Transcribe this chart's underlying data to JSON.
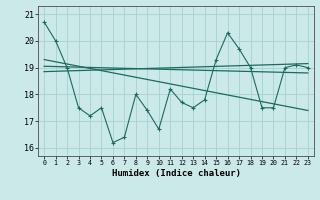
{
  "xlabel": "Humidex (Indice chaleur)",
  "xlim": [
    -0.5,
    23.5
  ],
  "ylim": [
    15.7,
    21.3
  ],
  "yticks": [
    16,
    17,
    18,
    19,
    20,
    21
  ],
  "xticks": [
    0,
    1,
    2,
    3,
    4,
    5,
    6,
    7,
    8,
    9,
    10,
    11,
    12,
    13,
    14,
    15,
    16,
    17,
    18,
    19,
    20,
    21,
    22,
    23
  ],
  "bg_color": "#cce9e9",
  "grid_color": "#aad4d4",
  "line_color": "#1a6b5e",
  "line1_y": [
    20.7,
    20.0,
    19.0,
    17.5,
    17.2,
    17.5,
    16.2,
    16.4,
    18.0,
    17.4,
    16.7,
    18.2,
    17.7,
    17.5,
    17.8,
    19.3,
    20.3,
    19.7,
    19.0,
    17.5,
    17.5,
    19.0,
    19.1,
    19.0
  ],
  "line2_x": [
    0,
    23
  ],
  "line2_y": [
    19.3,
    17.4
  ],
  "line3_x": [
    0,
    23
  ],
  "line3_y": [
    19.05,
    18.8
  ],
  "line4_x": [
    0,
    23
  ],
  "line4_y": [
    18.85,
    19.15
  ]
}
